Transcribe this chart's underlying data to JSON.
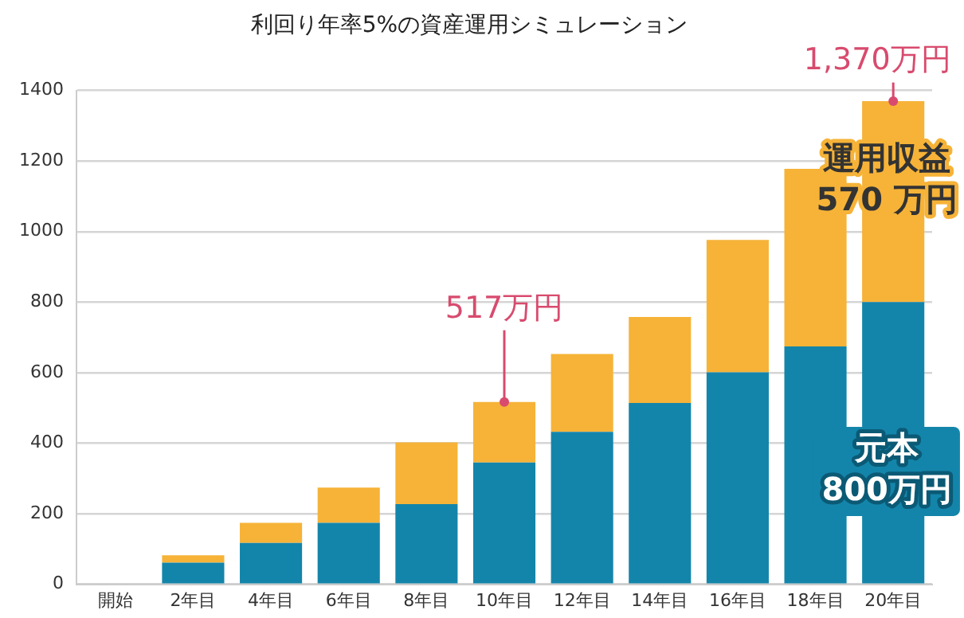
{
  "chart_data": {
    "type": "bar",
    "title": "利回り年率5%の資産運用シミュレーション",
    "stacked": true,
    "categories": [
      "開始",
      "2年目",
      "4年目",
      "6年目",
      "8年目",
      "10年目",
      "12年目",
      "14年目",
      "16年目",
      "18年目",
      "20年目"
    ],
    "series": [
      {
        "color": "#1485aa",
        "values": [
          0,
          61,
          117,
          174,
          227,
          345,
          432,
          514,
          601,
          674,
          800
        ]
      },
      {
        "color": "#f6b338",
        "values": [
          0,
          21,
          57,
          100,
          175,
          172,
          221,
          244,
          375,
          504,
          570
        ]
      }
    ],
    "ylim": [
      0,
      1400
    ],
    "yticks": [
      0,
      200,
      400,
      600,
      800,
      1000,
      1200,
      1400
    ],
    "grid": "y",
    "legend": false,
    "annotations": [
      {
        "text": "517万円",
        "x": "10年目",
        "y": 517
      },
      {
        "text": "1,370万円",
        "x": "20年目",
        "y": 1370
      },
      "運用収益\n570 万円",
      "元本\n800万円"
    ]
  }
}
